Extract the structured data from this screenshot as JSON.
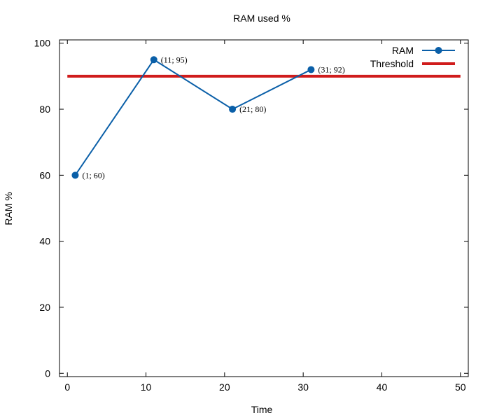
{
  "chart_data": {
    "type": "line",
    "title": "RAM used %",
    "xlabel": "Time",
    "ylabel": "RAM %",
    "xlim": [
      -1,
      51
    ],
    "ylim": [
      -1,
      101
    ],
    "xticks": [
      0,
      10,
      20,
      30,
      40,
      50
    ],
    "yticks": [
      0,
      20,
      40,
      60,
      80,
      100
    ],
    "grid": false,
    "legend_position": "top-right",
    "series": [
      {
        "name": "RAM",
        "color": "#0a5fa8",
        "marker": "circle",
        "x": [
          1,
          11,
          21,
          31
        ],
        "y": [
          60,
          95,
          80,
          92
        ],
        "point_labels": [
          "(1; 60)",
          "(11; 95)",
          "(21; 80)",
          "(31; 92)"
        ]
      },
      {
        "name": "Threshold",
        "color": "#d01c1c",
        "type": "hline",
        "x": [
          0,
          50
        ],
        "y": [
          90,
          90
        ]
      }
    ]
  }
}
